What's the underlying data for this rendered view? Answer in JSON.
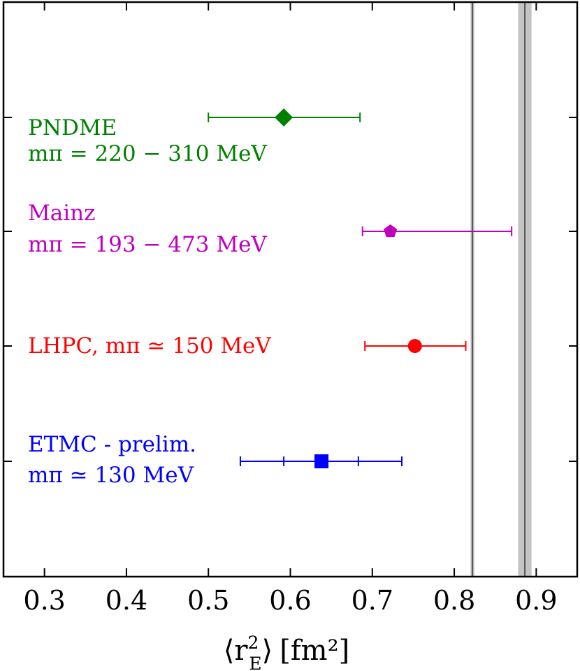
{
  "chart_data": {
    "type": "scatter",
    "title": "",
    "xlabel_parts": {
      "open": "⟨",
      "r": "r",
      "sup": "2",
      "sub": "E",
      "close": "⟩",
      "unit": "[fm²]"
    },
    "ylabel": "",
    "xlim": [
      0.25,
      0.95
    ],
    "xticks": [
      0.3,
      0.4,
      0.5,
      0.6,
      0.7,
      0.8,
      0.9
    ],
    "xtick_labels": [
      "0.3",
      "0.4",
      "0.5",
      "0.6",
      "0.7",
      "0.8",
      "0.9"
    ],
    "grid": false,
    "series": [
      {
        "name": "PNDME",
        "label_lines": [
          "PNDME",
          "mπ = 220 − 310 MeV"
        ],
        "color": "#008000",
        "marker": "diamond",
        "value": 0.592,
        "err_low": 0.092,
        "err_high": 0.093,
        "inner_err_low": null,
        "inner_err_high": null
      },
      {
        "name": "Mainz",
        "label_lines": [
          "Mainz",
          "mπ = 193 − 473 MeV"
        ],
        "color": "#bf00bf",
        "marker": "pentagon",
        "value": 0.722,
        "err_low": 0.034,
        "err_high": 0.148,
        "inner_err_low": null,
        "inner_err_high": null
      },
      {
        "name": "LHPC",
        "label_lines": [
          "LHPC, mπ ≃ 150 MeV"
        ],
        "color": "#ff0000",
        "marker": "circle",
        "value": 0.752,
        "err_low": 0.061,
        "err_high": 0.062,
        "inner_err_low": null,
        "inner_err_high": null
      },
      {
        "name": "ETMC - prelim.",
        "label_lines": [
          "ETMC - prelim.",
          "mπ ≃ 130 MeV"
        ],
        "color": "#0000ff",
        "marker": "square",
        "value": 0.638,
        "err_low": 0.099,
        "err_high": 0.098,
        "inner_err_low": 0.046,
        "inner_err_high": 0.045
      }
    ],
    "reference_bands": [
      {
        "center": 0.8222,
        "halfwidth": 0.0023,
        "color": "#555555"
      },
      {
        "center": 0.8861,
        "halfwidth": 0.0082,
        "color": "#555555"
      }
    ]
  }
}
